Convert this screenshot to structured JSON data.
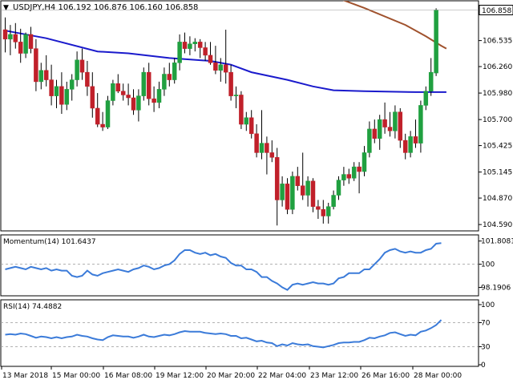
{
  "header": {
    "symbol_line": "USDJPY,H4  106.192 106.876 106.160 106.858",
    "current_price_label": "106.858"
  },
  "colors": {
    "background": "#ffffff",
    "frame": "#000000",
    "bull": "#20a040",
    "bear": "#c0202a",
    "ma_slow": "#a0522d",
    "ma_fast": "#1a1acc",
    "indicator": "#3b7bd9",
    "level_line": "#999999",
    "price_box_bg": "#ffffff"
  },
  "chart_data": [
    {
      "type": "candlestick",
      "symbol": "USDJPY",
      "timeframe": "H4",
      "ohlc_last": {
        "open": 106.192,
        "high": 106.876,
        "low": 106.16,
        "close": 106.858
      },
      "ylim": [
        104.54,
        106.93
      ],
      "y_ticks": [
        "106.858",
        "106.535",
        "106.260",
        "105.980",
        "105.700",
        "105.425",
        "105.145",
        "104.870",
        "104.590"
      ],
      "x_tick_labels": [
        "13 Mar 2018",
        "15 Mar 00:00",
        "16 Mar 08:00",
        "19 Mar 12:00",
        "20 Mar 20:00",
        "22 Mar 04:00",
        "23 Mar 12:00",
        "26 Mar 16:00",
        "28 Mar 00:00"
      ],
      "candles": [
        [
          106.65,
          106.78,
          106.41,
          106.55
        ],
        [
          106.55,
          106.7,
          106.38,
          106.6
        ],
        [
          106.6,
          106.72,
          106.45,
          106.52
        ],
        [
          106.52,
          106.66,
          106.3,
          106.4
        ],
        [
          106.4,
          106.62,
          106.35,
          106.6
        ],
        [
          106.6,
          106.68,
          106.4,
          106.45
        ],
        [
          106.45,
          106.55,
          106.0,
          106.1
        ],
        [
          106.1,
          106.3,
          106.02,
          106.22
        ],
        [
          106.22,
          106.38,
          106.05,
          106.12
        ],
        [
          106.12,
          106.28,
          105.85,
          105.95
        ],
        [
          105.95,
          106.12,
          105.82,
          106.05
        ],
        [
          106.05,
          106.2,
          105.76,
          105.86
        ],
        [
          105.86,
          106.1,
          105.8,
          106.02
        ],
        [
          106.02,
          106.18,
          105.9,
          106.12
        ],
        [
          106.12,
          106.42,
          106.05,
          106.33
        ],
        [
          106.33,
          106.45,
          106.12,
          106.2
        ],
        [
          106.2,
          106.32,
          105.95,
          106.05
        ],
        [
          106.05,
          106.2,
          105.72,
          105.82
        ],
        [
          105.82,
          105.98,
          105.62,
          105.65
        ],
        [
          105.65,
          105.78,
          105.58,
          105.62
        ],
        [
          105.62,
          105.95,
          105.6,
          105.9
        ],
        [
          105.9,
          106.12,
          105.85,
          106.08
        ],
        [
          106.08,
          106.18,
          105.98,
          106.0
        ],
        [
          106.0,
          106.08,
          105.9,
          105.96
        ],
        [
          105.96,
          106.08,
          105.85,
          105.93
        ],
        [
          105.93,
          106.02,
          105.75,
          105.8
        ],
        [
          105.8,
          106.02,
          105.68,
          105.95
        ],
        [
          105.95,
          106.25,
          105.9,
          106.2
        ],
        [
          106.2,
          106.3,
          105.85,
          105.92
        ],
        [
          105.92,
          106.05,
          105.78,
          105.88
        ],
        [
          105.88,
          106.1,
          105.82,
          106.02
        ],
        [
          106.02,
          106.25,
          105.95,
          106.18
        ],
        [
          106.18,
          106.3,
          106.05,
          106.12
        ],
        [
          106.12,
          106.35,
          106.08,
          106.3
        ],
        [
          106.3,
          106.6,
          106.22,
          106.52
        ],
        [
          106.52,
          106.62,
          106.4,
          106.45
        ],
        [
          106.45,
          106.58,
          106.38,
          106.5
        ],
        [
          106.5,
          106.56,
          106.42,
          106.52
        ],
        [
          106.52,
          106.55,
          106.35,
          106.46
        ],
        [
          106.46,
          106.52,
          106.32,
          106.38
        ],
        [
          106.38,
          106.52,
          106.28,
          106.3
        ],
        [
          106.3,
          106.48,
          106.18,
          106.22
        ],
        [
          106.22,
          106.35,
          106.1,
          106.28
        ],
        [
          106.28,
          106.65,
          106.08,
          106.2
        ],
        [
          106.2,
          106.28,
          105.9,
          105.95
        ],
        [
          105.95,
          106.05,
          105.82,
          105.96
        ],
        [
          105.96,
          106.0,
          105.6,
          105.65
        ],
        [
          105.65,
          105.78,
          105.58,
          105.72
        ],
        [
          105.72,
          105.8,
          105.5,
          105.55
        ],
        [
          105.55,
          105.65,
          105.3,
          105.35
        ],
        [
          105.35,
          105.8,
          105.28,
          105.45
        ],
        [
          105.45,
          105.52,
          105.12,
          105.35
        ],
        [
          105.35,
          105.48,
          105.25,
          105.3
        ],
        [
          105.3,
          105.4,
          104.58,
          104.85
        ],
        [
          104.85,
          105.1,
          104.78,
          105.02
        ],
        [
          105.02,
          105.08,
          104.7,
          104.75
        ],
        [
          104.75,
          105.15,
          104.7,
          105.1
        ],
        [
          105.1,
          105.2,
          104.95,
          105.0
        ],
        [
          105.0,
          105.35,
          104.85,
          104.9
        ],
        [
          104.9,
          105.1,
          104.78,
          105.05
        ],
        [
          105.05,
          105.08,
          104.72,
          104.78
        ],
        [
          104.78,
          104.85,
          104.65,
          104.75
        ],
        [
          104.75,
          104.85,
          104.6,
          104.68
        ],
        [
          104.68,
          104.82,
          104.6,
          104.78
        ],
        [
          104.78,
          104.95,
          104.75,
          104.9
        ],
        [
          104.9,
          105.1,
          104.85,
          105.06
        ],
        [
          105.06,
          105.2,
          105.0,
          105.12
        ],
        [
          105.12,
          105.18,
          105.02,
          105.08
        ],
        [
          105.08,
          105.25,
          105.05,
          105.2
        ],
        [
          105.2,
          105.25,
          104.92,
          105.15
        ],
        [
          105.15,
          105.42,
          105.1,
          105.35
        ],
        [
          105.35,
          105.68,
          105.3,
          105.6
        ],
        [
          105.6,
          105.7,
          105.45,
          105.5
        ],
        [
          105.5,
          105.75,
          105.38,
          105.7
        ],
        [
          105.7,
          105.88,
          105.55,
          105.62
        ],
        [
          105.62,
          105.78,
          105.52,
          105.58
        ],
        [
          105.58,
          105.85,
          105.5,
          105.78
        ],
        [
          105.78,
          105.82,
          105.4,
          105.48
        ],
        [
          105.48,
          105.55,
          105.28,
          105.35
        ],
        [
          105.35,
          105.58,
          105.3,
          105.52
        ],
        [
          105.52,
          105.7,
          105.4,
          105.45
        ],
        [
          105.45,
          105.9,
          105.35,
          105.85
        ],
        [
          105.85,
          106.05,
          105.8,
          106.0
        ],
        [
          106.0,
          106.35,
          105.95,
          106.2
        ],
        [
          106.192,
          106.876,
          106.16,
          106.858
        ]
      ],
      "ma_slow_points": [
        [
          50,
          107.3
        ],
        [
          60,
          107.08
        ],
        [
          70,
          106.88
        ],
        [
          78,
          106.7
        ],
        [
          82,
          106.58
        ],
        [
          85,
          106.48
        ],
        [
          86,
          106.45
        ]
      ],
      "ma_fast_points": [
        [
          0,
          106.64
        ],
        [
          8,
          106.56
        ],
        [
          18,
          106.42
        ],
        [
          24,
          106.4
        ],
        [
          32,
          106.35
        ],
        [
          40,
          106.32
        ],
        [
          44,
          106.28
        ],
        [
          48,
          106.2
        ],
        [
          55,
          106.12
        ],
        [
          60,
          106.05
        ],
        [
          64,
          106.01
        ],
        [
          70,
          106.0
        ],
        [
          80,
          105.99
        ],
        [
          86,
          105.99
        ]
      ]
    },
    {
      "type": "line",
      "title": "Momentum(14) 101.6437",
      "ylim": [
        97.6,
        102.1
      ],
      "y_ticks": [
        "101.8081",
        "100",
        "98.1906"
      ],
      "level": 100,
      "values": [
        99.6,
        99.7,
        99.8,
        99.7,
        99.6,
        99.8,
        99.7,
        99.6,
        99.7,
        99.5,
        99.6,
        99.5,
        99.5,
        99.1,
        99.0,
        99.1,
        99.5,
        99.2,
        99.1,
        99.3,
        99.4,
        99.5,
        99.6,
        99.5,
        99.4,
        99.6,
        99.7,
        99.9,
        99.8,
        99.6,
        99.7,
        99.9,
        100.0,
        100.3,
        100.8,
        101.1,
        101.1,
        100.9,
        100.8,
        100.9,
        100.7,
        100.8,
        100.6,
        100.5,
        100.1,
        99.9,
        99.9,
        99.6,
        99.6,
        99.4,
        99.0,
        99.0,
        98.7,
        98.5,
        98.2,
        98.0,
        98.4,
        98.5,
        98.4,
        98.5,
        98.6,
        98.5,
        98.5,
        98.4,
        98.5,
        98.9,
        99.0,
        99.3,
        99.3,
        99.3,
        99.6,
        99.6,
        100.0,
        100.4,
        100.9,
        101.1,
        101.2,
        101.0,
        100.9,
        101.0,
        100.9,
        100.9,
        101.1,
        101.2,
        101.6,
        101.6437
      ]
    },
    {
      "type": "line",
      "title": "RSI(14) 74.4882",
      "ylim": [
        0,
        100
      ],
      "y_ticks": [
        "100",
        "70",
        "30",
        "0"
      ],
      "levels": [
        70,
        30
      ],
      "values": [
        50,
        51,
        50,
        52,
        51,
        48,
        45,
        47,
        46,
        44,
        46,
        44,
        46,
        47,
        50,
        48,
        47,
        44,
        42,
        41,
        46,
        49,
        48,
        47,
        47,
        45,
        47,
        50,
        47,
        46,
        48,
        50,
        49,
        51,
        54,
        56,
        55,
        55,
        55,
        53,
        52,
        51,
        52,
        51,
        48,
        48,
        44,
        45,
        42,
        39,
        40,
        37,
        36,
        31,
        34,
        32,
        36,
        34,
        33,
        34,
        31,
        30,
        29,
        31,
        33,
        36,
        37,
        37,
        38,
        38,
        41,
        45,
        44,
        47,
        49,
        53,
        54,
        51,
        48,
        50,
        49,
        55,
        57,
        61,
        66,
        74.4882
      ]
    }
  ]
}
